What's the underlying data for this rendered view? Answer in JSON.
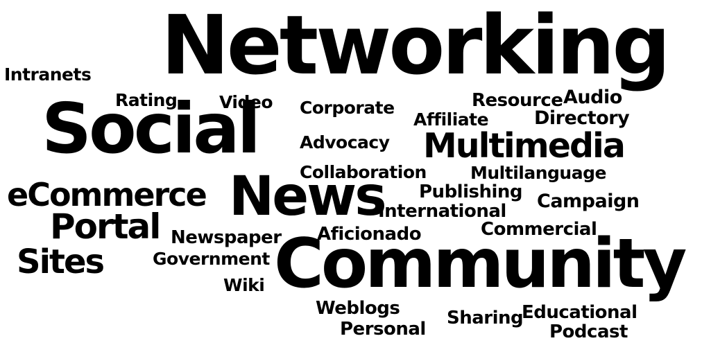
{
  "colors": {
    "background": "#ffffff",
    "text": "#000000"
  },
  "words": [
    "Networking",
    "Intranets",
    "Rating",
    "Video",
    "Corporate",
    "Resource",
    "Audio",
    "Affiliate",
    "Directory",
    "Social",
    "Advocacy",
    "Multimedia",
    "Collaboration",
    "Multilanguage",
    "eCommerce",
    "News",
    "Publishing",
    "Campaign",
    "International",
    "Portal",
    "Newspaper",
    "Aficionado",
    "Commercial",
    "Sites",
    "Government",
    "Community",
    "Wiki",
    "Weblogs",
    "Sharing",
    "Educational",
    "Personal",
    "Podcast"
  ]
}
